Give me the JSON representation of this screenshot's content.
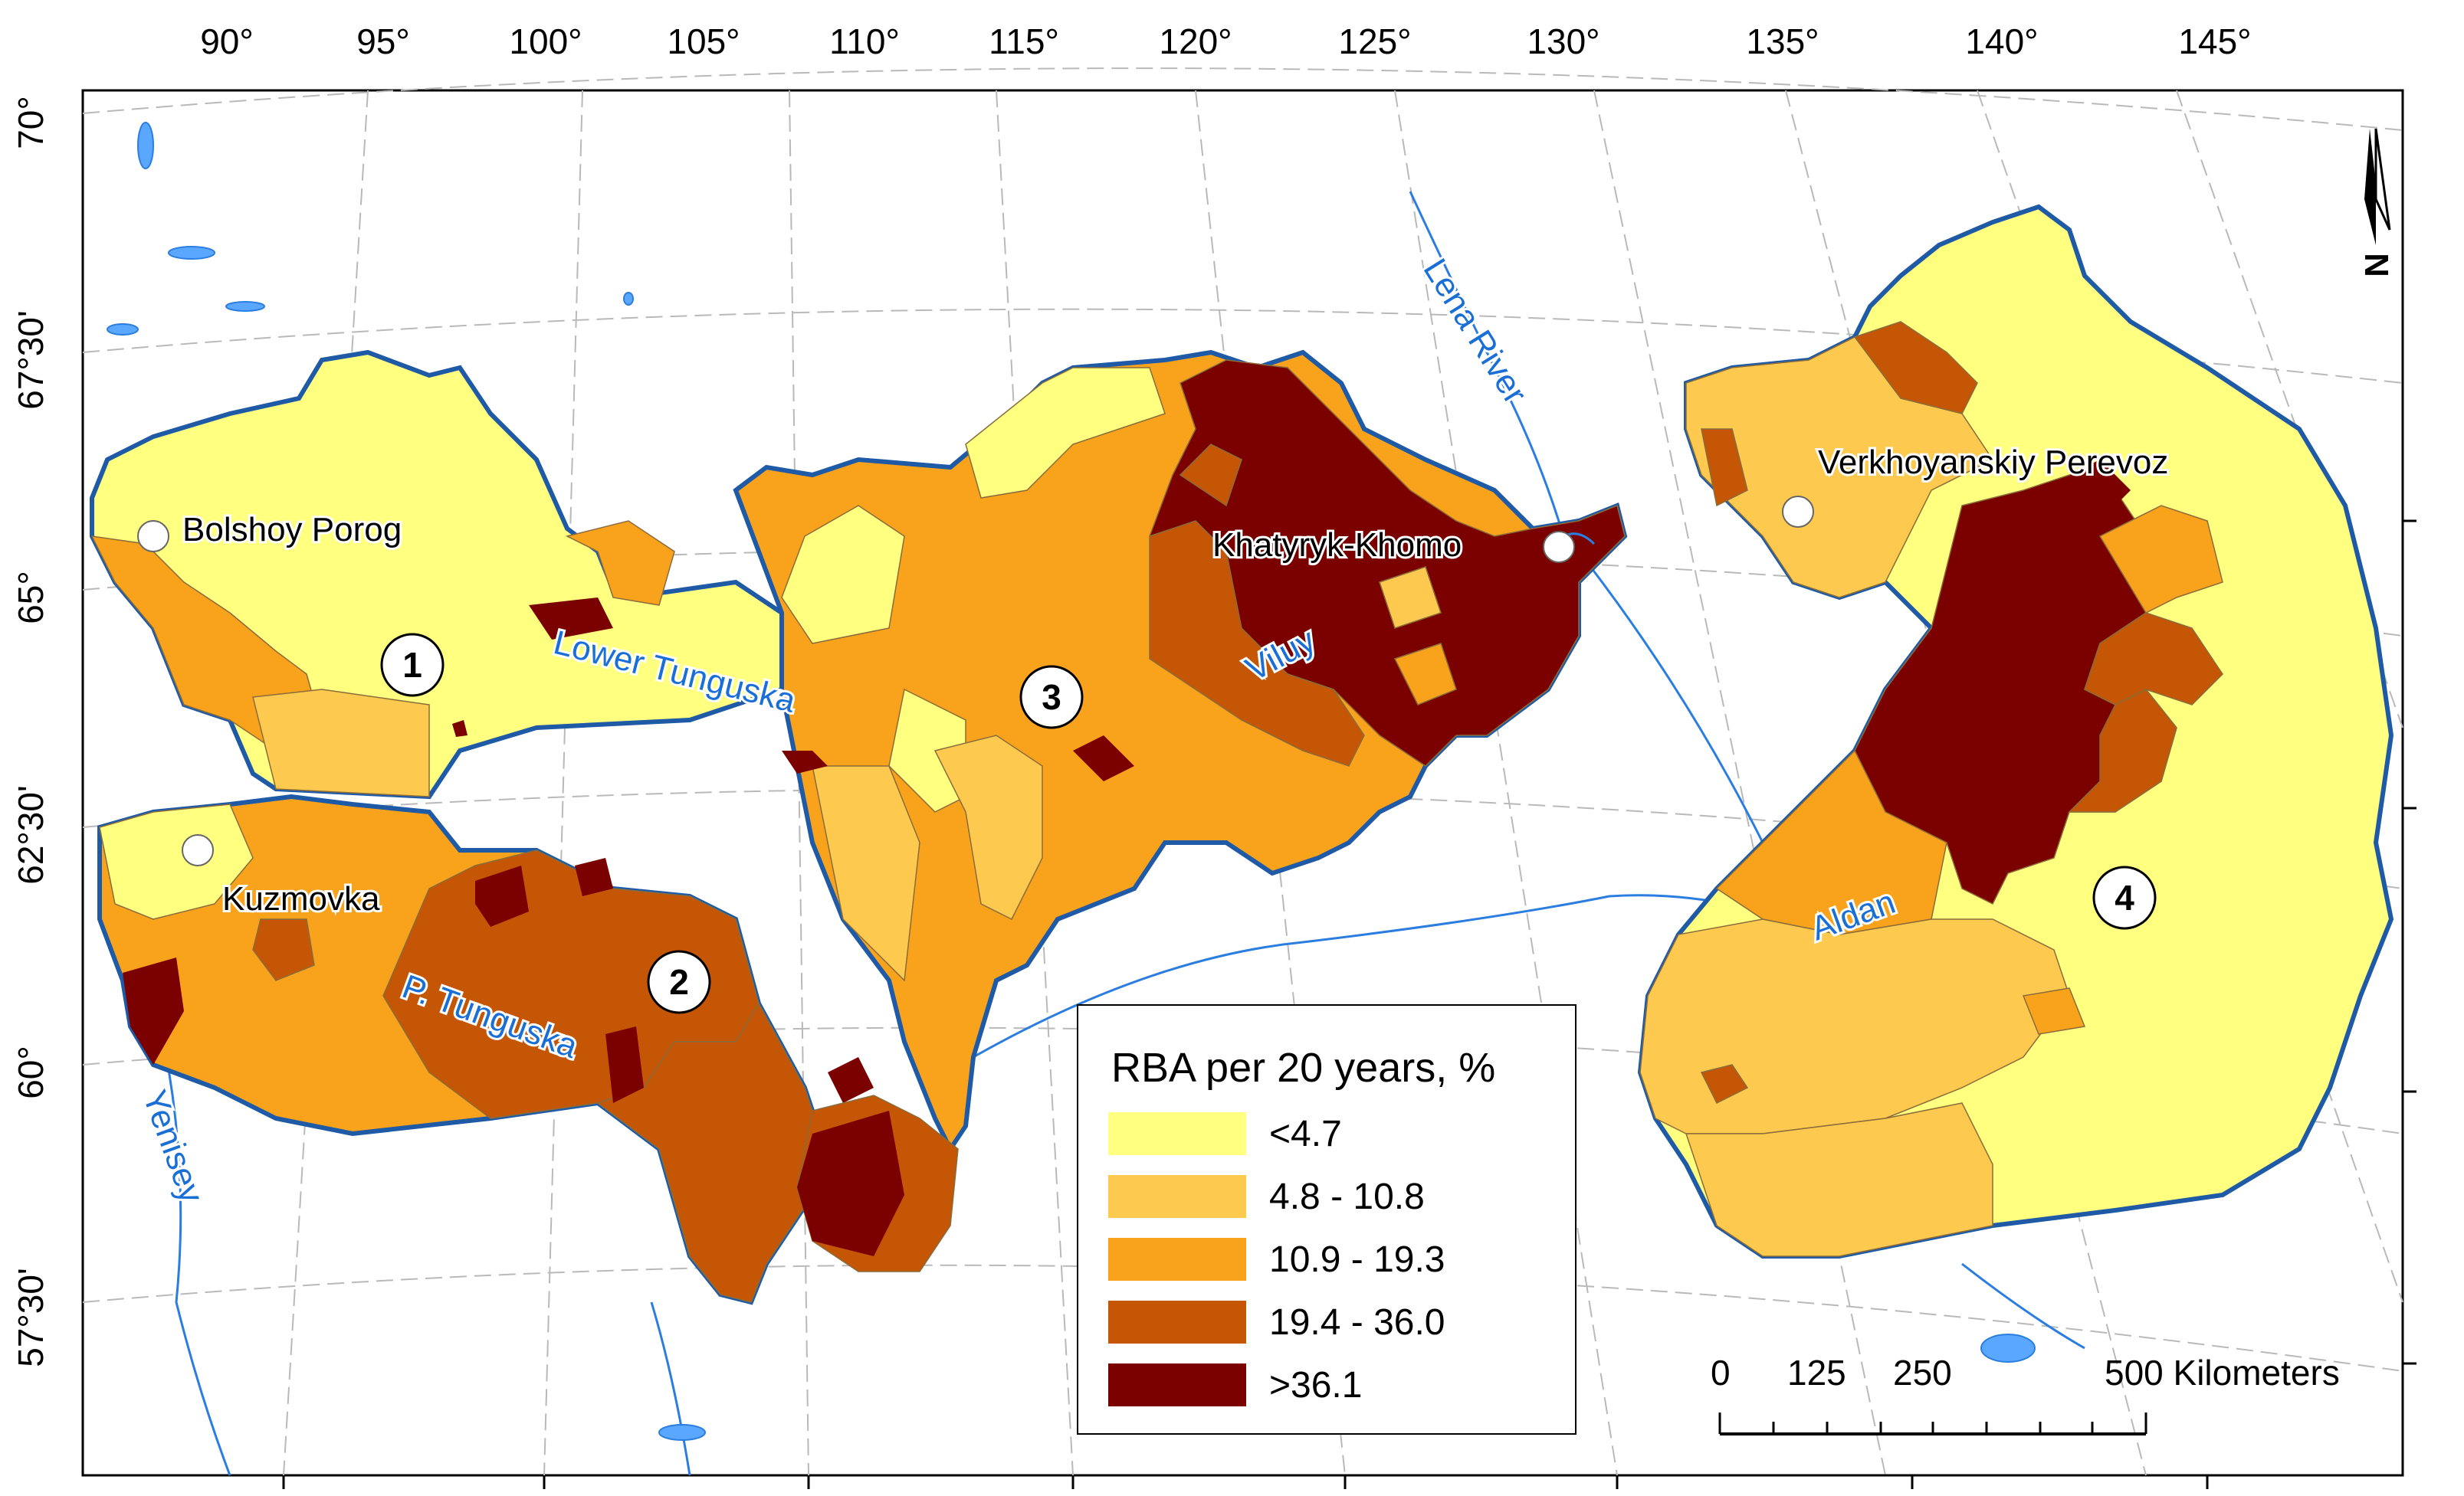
{
  "longitude_ticks": [
    "90°",
    "95°",
    "100°",
    "105°",
    "110°",
    "115°",
    "120°",
    "125°",
    "130°",
    "135°",
    "140°",
    "145°"
  ],
  "latitude_ticks": [
    "70°",
    "67°30'",
    "65°",
    "62°30'",
    "60°",
    "57°30'"
  ],
  "places": {
    "bolshoy_porog": "Bolshoy Porog",
    "kuzmovka": "Kuzmovka",
    "khatyryk_khomo": "Khatyryk-Khomo",
    "verkhoyanskiy_perevoz": "Verkhoyanskiy Perevoz"
  },
  "rivers": {
    "lower_tunguska": "Lower Tunguska",
    "p_tunguska": "P. Tunguska",
    "viluy": "Viluy",
    "lena": "Lena River",
    "yenisey": "Yenisey",
    "aldan": "Aldan"
  },
  "basin_numbers": [
    "1",
    "2",
    "3",
    "4"
  ],
  "legend": {
    "title": "RBA per 20 years, %",
    "classes": [
      {
        "label": "<4.7",
        "color": "#ffff80"
      },
      {
        "label": "4.8 - 10.8",
        "color": "#fdc94f"
      },
      {
        "label": "10.9 - 19.3",
        "color": "#f9a21c"
      },
      {
        "label": "19.4 - 36.0",
        "color": "#c45606"
      },
      {
        "label": ">36.1",
        "color": "#7b0000"
      }
    ]
  },
  "scale_bar": {
    "labels": [
      "0",
      "125",
      "250"
    ],
    "end_label": "500 Kilometers"
  },
  "north_arrow": "N",
  "colors": {
    "basin_outline": "#1f5aa6",
    "river": "#2b7de0",
    "river_label": "#1a6fd6"
  }
}
